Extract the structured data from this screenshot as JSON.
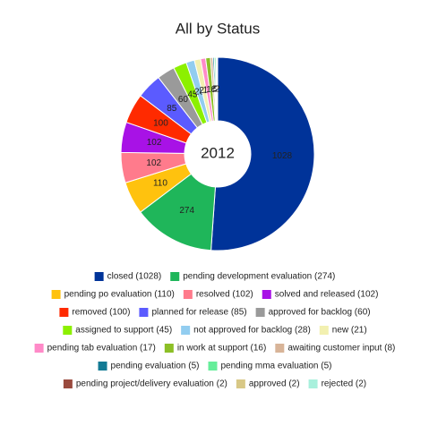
{
  "chart_data": {
    "type": "donut",
    "title": "All by Status",
    "total": 2012,
    "categories": [
      "closed (1028)",
      "pending development evaluation (274)",
      "pending po evaluation (110)",
      "resolved (102)",
      "solved and released (102)",
      "removed (100)",
      "planned for release (85)",
      "approved for backlog (60)",
      "assigned to support (45)",
      "not approved for backlog (28)",
      "new (21)",
      "pending tab evaluation (17)",
      "in work at support (16)",
      "awaiting customer input (8)",
      "pending evaluation (5)",
      "pending mma evaluation (5)",
      "pending project/delivery evaluation (2)",
      "approved (2)",
      "rejected (2)"
    ],
    "values": [
      1028,
      274,
      110,
      102,
      102,
      100,
      85,
      60,
      45,
      28,
      21,
      17,
      16,
      8,
      5,
      5,
      2,
      2,
      2
    ],
    "colors": [
      "#003399",
      "#1fb65a",
      "#ffc20e",
      "#ff7b8c",
      "#a812e6",
      "#ff2a00",
      "#5b5bff",
      "#9a9a9a",
      "#8cf000",
      "#92cdf0",
      "#f2f0b0",
      "#ff8ac8",
      "#8cbf26",
      "#d8b498",
      "#127a94",
      "#66ee9a",
      "#9a4a3e",
      "#d8c886",
      "#a8f0dc"
    ]
  }
}
